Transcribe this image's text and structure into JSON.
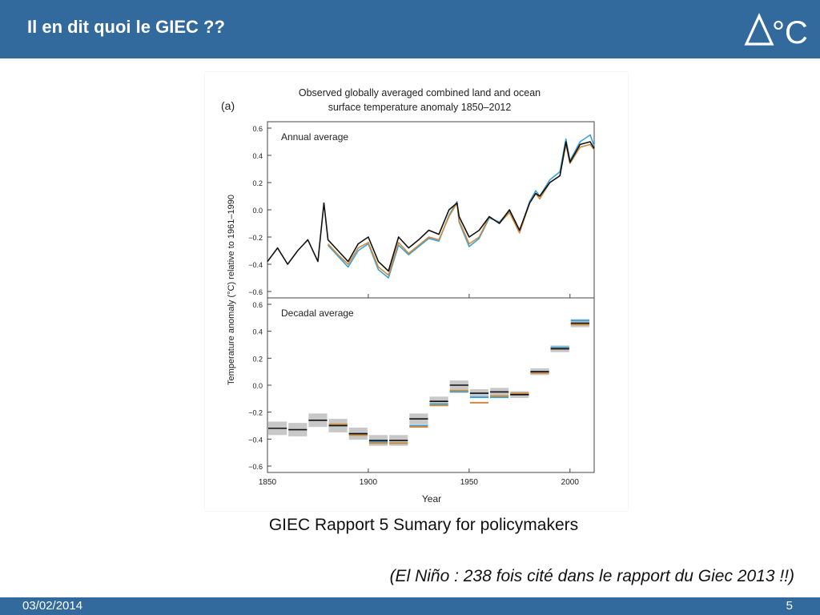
{
  "slide": {
    "title": "Il en dit quoi le GIEC ??",
    "logo_text": "°C",
    "caption": "GIEC Rapport 5 Sumary for policymakers",
    "note": "(El Niño : 238 fois cité dans le rapport du Giec 2013 !!)",
    "footer_date": "03/02/2014",
    "footer_page": "5"
  },
  "colors": {
    "header_bg": "#336a9d",
    "series": [
      "#111111",
      "#d08a3a",
      "#3aa0d8"
    ]
  },
  "chart_data": {
    "type": "line",
    "panel_label": "(a)",
    "title": "Observed globally averaged combined land and ocean surface temperature anomaly 1850–2012",
    "title_lines": [
      "Observed globally averaged combined land and ocean",
      "surface temperature anomaly 1850–2012"
    ],
    "xlabel": "Year",
    "ylabel": "Temperature anomaly (°C) relative to 1961–1990",
    "xlim": [
      1850,
      2012
    ],
    "xticks": [
      1850,
      1900,
      1950,
      2000
    ],
    "panels": [
      {
        "label": "Annual average",
        "ylim": [
          -0.6,
          0.6
        ],
        "yticks": [
          "0.6",
          "0.4",
          "0.2",
          "0.0",
          "−0.2",
          "−0.4",
          "−0.6"
        ],
        "series": [
          {
            "color": "#111111",
            "x": [
              1850,
              1855,
              1860,
              1865,
              1870,
              1875,
              1878,
              1880,
              1885,
              1890,
              1895,
              1900,
              1905,
              1910,
              1915,
              1920,
              1925,
              1930,
              1935,
              1940,
              1944,
              1945,
              1950,
              1955,
              1960,
              1965,
              1970,
              1975,
              1980,
              1983,
              1985,
              1990,
              1995,
              1998,
              2000,
              2005,
              2010,
              2012
            ],
            "y": [
              -0.38,
              -0.28,
              -0.4,
              -0.3,
              -0.22,
              -0.38,
              0.05,
              -0.22,
              -0.3,
              -0.38,
              -0.25,
              -0.2,
              -0.38,
              -0.45,
              -0.2,
              -0.28,
              -0.22,
              -0.15,
              -0.18,
              0.0,
              0.05,
              -0.05,
              -0.2,
              -0.15,
              -0.05,
              -0.1,
              0.0,
              -0.15,
              0.05,
              0.12,
              0.1,
              0.2,
              0.25,
              0.5,
              0.35,
              0.48,
              0.5,
              0.45
            ]
          },
          {
            "color": "#d08a3a",
            "x": [
              1880,
              1885,
              1890,
              1895,
              1900,
              1905,
              1910,
              1915,
              1920,
              1925,
              1930,
              1935,
              1940,
              1944,
              1945,
              1950,
              1955,
              1960,
              1965,
              1970,
              1975,
              1980,
              1983,
              1985,
              1990,
              1995,
              1998,
              2000,
              2005,
              2010,
              2012
            ],
            "y": [
              -0.25,
              -0.33,
              -0.4,
              -0.28,
              -0.24,
              -0.42,
              -0.48,
              -0.24,
              -0.32,
              -0.26,
              -0.2,
              -0.22,
              -0.05,
              0.05,
              -0.08,
              -0.25,
              -0.2,
              -0.05,
              -0.1,
              -0.02,
              -0.17,
              0.05,
              0.12,
              0.08,
              0.2,
              0.25,
              0.48,
              0.34,
              0.46,
              0.48,
              0.44
            ]
          },
          {
            "color": "#3aa0d8",
            "x": [
              1880,
              1885,
              1890,
              1895,
              1900,
              1905,
              1910,
              1915,
              1920,
              1925,
              1930,
              1935,
              1940,
              1944,
              1945,
              1950,
              1955,
              1960,
              1965,
              1970,
              1975,
              1980,
              1983,
              1985,
              1990,
              1995,
              1998,
              2000,
              2005,
              2010,
              2012
            ],
            "y": [
              -0.26,
              -0.34,
              -0.42,
              -0.3,
              -0.25,
              -0.44,
              -0.5,
              -0.26,
              -0.33,
              -0.27,
              -0.21,
              -0.23,
              -0.04,
              0.06,
              -0.09,
              -0.27,
              -0.21,
              -0.06,
              -0.09,
              -0.01,
              -0.16,
              0.06,
              0.14,
              0.1,
              0.22,
              0.28,
              0.52,
              0.36,
              0.5,
              0.55,
              0.47
            ]
          }
        ]
      },
      {
        "label": "Decadal average",
        "ylim": [
          -0.6,
          0.6
        ],
        "yticks": [
          "0.6",
          "0.4",
          "0.2",
          "0.0",
          "−0.2",
          "−0.4",
          "−0.6"
        ],
        "decades": [
          {
            "start": 1850,
            "black": -0.32,
            "orange": null,
            "blue": null,
            "unc": 0.05
          },
          {
            "start": 1860,
            "black": -0.33,
            "orange": null,
            "blue": null,
            "unc": 0.05
          },
          {
            "start": 1870,
            "black": -0.26,
            "orange": null,
            "blue": null,
            "unc": 0.05
          },
          {
            "start": 1880,
            "black": -0.3,
            "orange": -0.29,
            "blue": -0.3,
            "unc": 0.05
          },
          {
            "start": 1890,
            "black": -0.36,
            "orange": -0.37,
            "blue": -0.36,
            "unc": 0.045
          },
          {
            "start": 1900,
            "black": -0.41,
            "orange": -0.43,
            "blue": -0.42,
            "unc": 0.04
          },
          {
            "start": 1910,
            "black": -0.41,
            "orange": -0.43,
            "blue": -0.43,
            "unc": 0.04
          },
          {
            "start": 1920,
            "black": -0.25,
            "orange": -0.31,
            "blue": -0.3,
            "unc": 0.04
          },
          {
            "start": 1930,
            "black": -0.12,
            "orange": -0.15,
            "blue": -0.14,
            "unc": 0.035
          },
          {
            "start": 1940,
            "black": 0.0,
            "orange": -0.04,
            "blue": -0.05,
            "unc": 0.035
          },
          {
            "start": 1950,
            "black": -0.06,
            "orange": -0.13,
            "blue": -0.09,
            "unc": 0.03
          },
          {
            "start": 1960,
            "black": -0.05,
            "orange": -0.08,
            "blue": -0.09,
            "unc": 0.03
          },
          {
            "start": 1970,
            "black": -0.07,
            "orange": -0.06,
            "blue": -0.07,
            "unc": 0.025
          },
          {
            "start": 1980,
            "black": 0.1,
            "orange": 0.09,
            "blue": 0.1,
            "unc": 0.025
          },
          {
            "start": 1990,
            "black": 0.27,
            "orange": 0.27,
            "blue": 0.28,
            "unc": 0.025
          },
          {
            "start": 2000,
            "black": 0.46,
            "orange": 0.45,
            "blue": 0.48,
            "unc": 0.03
          }
        ]
      }
    ]
  }
}
